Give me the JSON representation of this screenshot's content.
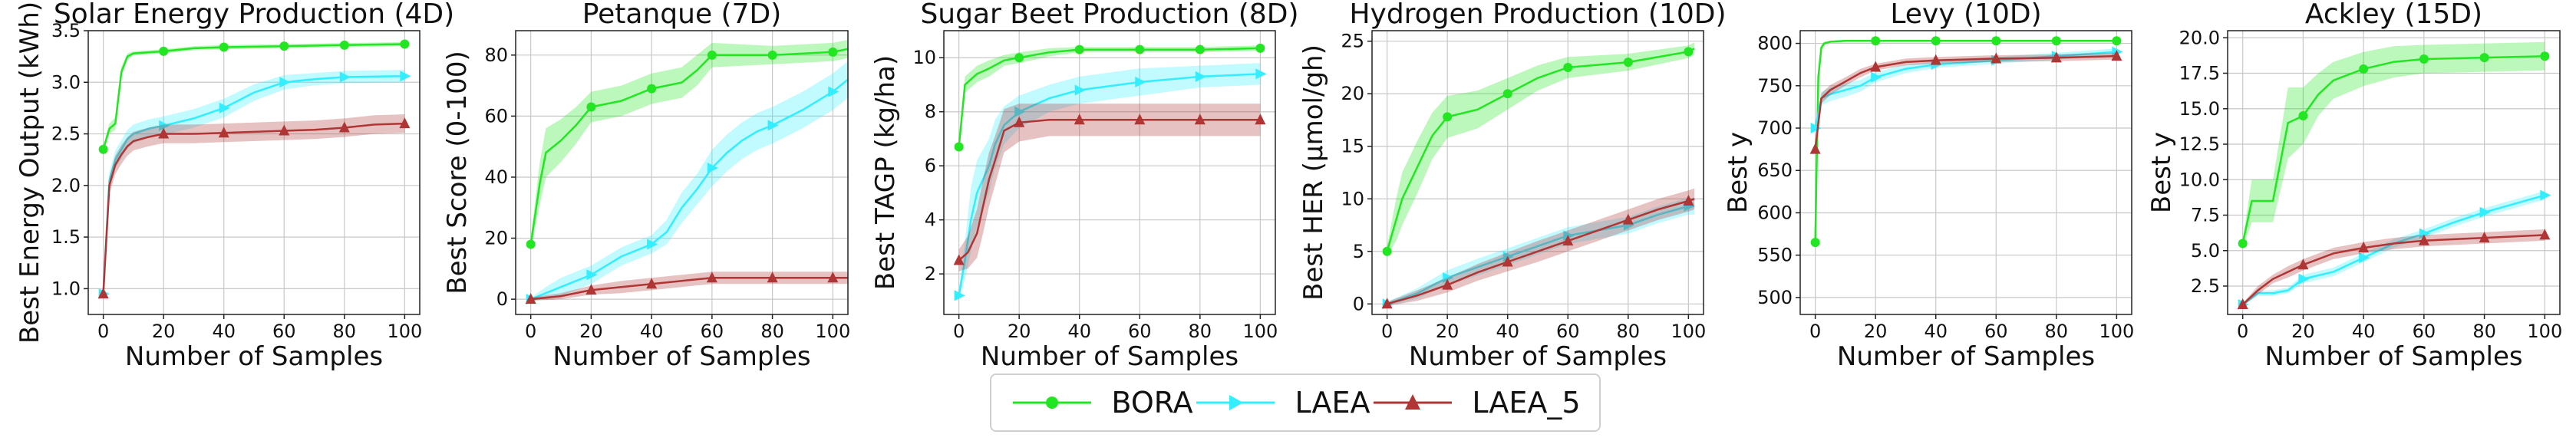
{
  "colors": {
    "BORA": "#22e622",
    "LAEA": "#33eeff",
    "LAEA_5": "#b03535",
    "grid": "#c8c8c8"
  },
  "legend": {
    "entries": [
      {
        "name": "BORA",
        "marker": "circle"
      },
      {
        "name": "LAEA",
        "marker": "triangle-right"
      },
      {
        "name": "LAEA_5",
        "marker": "triangle-up",
        "label": "LAEA_5"
      }
    ]
  },
  "chart_data": [
    {
      "type": "line",
      "title": "Solar Energy Production (4D)",
      "xlabel": "Number of Samples",
      "ylabel": "Best Energy Output (kWh)",
      "xlim": [
        -5,
        105
      ],
      "ylim": [
        0.75,
        3.5
      ],
      "xticks": [
        0,
        20,
        40,
        60,
        80,
        100
      ],
      "yticks": [
        1.0,
        1.5,
        2.0,
        2.5,
        3.0,
        3.5
      ],
      "ytick_labels": [
        "1.0",
        "1.5",
        "2.0",
        "2.5",
        "3.0",
        "3.5"
      ],
      "series": [
        {
          "name": "BORA",
          "x": [
            0,
            2,
            4,
            6,
            8,
            10,
            15,
            20,
            30,
            40,
            60,
            80,
            100
          ],
          "y": [
            2.35,
            2.55,
            2.6,
            3.1,
            3.25,
            3.28,
            3.29,
            3.3,
            3.33,
            3.34,
            3.35,
            3.36,
            3.37
          ],
          "band": [
            0.03,
            0.05,
            0.06,
            0.05,
            0.03,
            0.02,
            0.02,
            0.02,
            0.02,
            0.02,
            0.02,
            0.02,
            0.02
          ]
        },
        {
          "name": "LAEA",
          "x": [
            0,
            2,
            4,
            6,
            8,
            10,
            15,
            20,
            30,
            40,
            50,
            60,
            70,
            80,
            100
          ],
          "y": [
            0.95,
            2.05,
            2.25,
            2.35,
            2.45,
            2.5,
            2.55,
            2.58,
            2.65,
            2.75,
            2.9,
            3.0,
            3.03,
            3.05,
            3.06
          ],
          "band": [
            0.02,
            0.08,
            0.09,
            0.09,
            0.09,
            0.09,
            0.09,
            0.09,
            0.09,
            0.09,
            0.08,
            0.07,
            0.06,
            0.06,
            0.06
          ]
        },
        {
          "name": "LAEA_5",
          "x": [
            0,
            2,
            4,
            6,
            8,
            10,
            15,
            20,
            30,
            40,
            50,
            60,
            70,
            80,
            90,
            100
          ],
          "y": [
            0.95,
            2.0,
            2.2,
            2.3,
            2.38,
            2.43,
            2.47,
            2.5,
            2.5,
            2.51,
            2.52,
            2.53,
            2.54,
            2.56,
            2.59,
            2.6
          ],
          "band": [
            0.02,
            0.08,
            0.09,
            0.09,
            0.09,
            0.09,
            0.09,
            0.09,
            0.09,
            0.09,
            0.09,
            0.09,
            0.09,
            0.09,
            0.09,
            0.09
          ]
        }
      ]
    },
    {
      "type": "line",
      "title": "Petanque (7D)",
      "xlabel": "Number of Samples",
      "ylabel": "Best Score (0-100)",
      "xlim": [
        -5,
        105
      ],
      "ylim": [
        -5,
        88
      ],
      "xticks": [
        0,
        20,
        40,
        60,
        80,
        100
      ],
      "yticks": [
        0,
        20,
        40,
        60,
        80
      ],
      "ytick_labels": [
        "0",
        "20",
        "40",
        "60",
        "80"
      ],
      "series": [
        {
          "name": "BORA",
          "x": [
            0,
            3,
            5,
            10,
            15,
            20,
            30,
            40,
            50,
            55,
            60,
            80,
            100,
            105
          ],
          "y": [
            18,
            38,
            48,
            52,
            57,
            63,
            65,
            69,
            71,
            75,
            80,
            80,
            81,
            82
          ],
          "band": [
            2,
            7,
            8,
            7,
            6,
            5,
            5,
            5,
            5,
            5,
            4,
            3,
            3,
            3
          ]
        },
        {
          "name": "LAEA",
          "x": [
            0,
            5,
            10,
            20,
            30,
            40,
            45,
            50,
            55,
            60,
            65,
            70,
            75,
            80,
            90,
            100,
            105
          ],
          "y": [
            0,
            2,
            4,
            8,
            14,
            18,
            22,
            30,
            36,
            43,
            48,
            52,
            55,
            57,
            62,
            68,
            72
          ],
          "band": [
            0.5,
            2,
            3,
            3,
            3,
            3,
            4,
            5,
            5,
            6,
            6,
            6,
            6,
            6,
            6,
            6,
            6
          ]
        },
        {
          "name": "LAEA_5",
          "x": [
            0,
            5,
            10,
            20,
            30,
            40,
            50,
            60,
            80,
            100,
            105
          ],
          "y": [
            0,
            0.5,
            1,
            3,
            4,
            5,
            6,
            7,
            7,
            7,
            7
          ],
          "band": [
            0.5,
            0.8,
            1,
            1.5,
            2,
            2,
            2,
            2,
            2,
            2,
            2
          ]
        }
      ]
    },
    {
      "type": "line",
      "title": "Sugar Beet Production (8D)",
      "xlabel": "Number of Samples",
      "ylabel": "Best TAGP (kg/ha)",
      "xlim": [
        -5,
        105
      ],
      "ylim": [
        0.5,
        11
      ],
      "xticks": [
        0,
        20,
        40,
        60,
        80,
        100
      ],
      "yticks": [
        2,
        4,
        6,
        8,
        10
      ],
      "ytick_labels": [
        "2",
        "4",
        "6",
        "8",
        "10"
      ],
      "series": [
        {
          "name": "BORA",
          "x": [
            0,
            2,
            4,
            6,
            8,
            10,
            15,
            20,
            30,
            40,
            60,
            80,
            100
          ],
          "y": [
            6.7,
            9.0,
            9.2,
            9.4,
            9.5,
            9.6,
            9.9,
            10.0,
            10.2,
            10.3,
            10.3,
            10.3,
            10.35
          ],
          "band": [
            0.1,
            0.3,
            0.3,
            0.3,
            0.3,
            0.3,
            0.2,
            0.2,
            0.15,
            0.1,
            0.1,
            0.1,
            0.1
          ]
        },
        {
          "name": "LAEA",
          "x": [
            0,
            2,
            4,
            6,
            8,
            10,
            12,
            15,
            20,
            30,
            40,
            60,
            80,
            100
          ],
          "y": [
            1.2,
            2.5,
            4.0,
            5.0,
            5.5,
            6.0,
            6.8,
            7.5,
            8.0,
            8.5,
            8.8,
            9.1,
            9.3,
            9.4
          ],
          "band": [
            0.2,
            0.7,
            1.2,
            1.2,
            1.1,
            1.0,
            0.9,
            0.7,
            0.6,
            0.5,
            0.5,
            0.5,
            0.4,
            0.4
          ]
        },
        {
          "name": "LAEA_5",
          "x": [
            0,
            3,
            6,
            8,
            10,
            12,
            15,
            20,
            30,
            40,
            60,
            80,
            100
          ],
          "y": [
            2.5,
            2.8,
            3.5,
            4.5,
            5.5,
            6.2,
            7.3,
            7.6,
            7.7,
            7.7,
            7.7,
            7.7,
            7.7
          ],
          "band": [
            0.4,
            0.6,
            0.9,
            1.0,
            1.0,
            0.9,
            0.8,
            0.7,
            0.6,
            0.6,
            0.6,
            0.6,
            0.6
          ]
        }
      ]
    },
    {
      "type": "line",
      "title": "Hydrogen Production (10D)",
      "xlabel": "Number of Samples",
      "ylabel": "Best HER (μmol/gh)",
      "xlim": [
        -5,
        105
      ],
      "ylim": [
        -1,
        26
      ],
      "xticks": [
        0,
        20,
        40,
        60,
        80,
        100
      ],
      "yticks": [
        0,
        5,
        10,
        15,
        20,
        25
      ],
      "ytick_labels": [
        "0",
        "5",
        "10",
        "15",
        "20",
        "25"
      ],
      "series": [
        {
          "name": "BORA",
          "x": [
            0,
            3,
            5,
            10,
            15,
            20,
            30,
            40,
            50,
            60,
            80,
            100,
            102
          ],
          "y": [
            5,
            8,
            10,
            13,
            16,
            17.8,
            18.5,
            20,
            21.5,
            22.5,
            23,
            24,
            24.3
          ],
          "band": [
            0.5,
            2,
            2.5,
            2.5,
            2.2,
            2.0,
            1.8,
            1.5,
            1.2,
            1.0,
            0.8,
            0.6,
            0.6
          ]
        },
        {
          "name": "LAEA",
          "x": [
            0,
            10,
            20,
            30,
            40,
            50,
            60,
            70,
            80,
            90,
            100,
            102
          ],
          "y": [
            0,
            1,
            2.5,
            3.5,
            4.5,
            5.5,
            6.5,
            7,
            7.5,
            8.5,
            9.3,
            9.3
          ],
          "band": [
            0.2,
            0.5,
            0.7,
            0.8,
            0.8,
            0.8,
            0.8,
            0.8,
            0.8,
            0.8,
            0.8,
            0.8
          ]
        },
        {
          "name": "LAEA_5",
          "x": [
            0,
            10,
            20,
            30,
            40,
            50,
            60,
            70,
            80,
            90,
            100,
            102
          ],
          "y": [
            0,
            0.8,
            1.8,
            3,
            4,
            5,
            6,
            7,
            8,
            9,
            9.8,
            10
          ],
          "band": [
            0.2,
            0.5,
            0.7,
            0.8,
            0.9,
            1.0,
            1.0,
            1.0,
            1.0,
            1.0,
            1.0,
            1.0
          ]
        }
      ]
    },
    {
      "type": "line",
      "title": "Levy (10D)",
      "xlabel": "Number of Samples",
      "ylabel": "Best y",
      "xlim": [
        -5,
        105
      ],
      "ylim": [
        480,
        815
      ],
      "xticks": [
        0,
        20,
        40,
        60,
        80,
        100
      ],
      "yticks": [
        500,
        550,
        600,
        650,
        700,
        750,
        800
      ],
      "ytick_labels": [
        "500",
        "550",
        "600",
        "650",
        "700",
        "750",
        "800"
      ],
      "series": [
        {
          "name": "BORA",
          "x": [
            0,
            1,
            2,
            3,
            5,
            10,
            20,
            40,
            60,
            80,
            100
          ],
          "y": [
            565,
            760,
            795,
            800,
            802,
            803,
            803,
            803,
            803,
            803,
            803
          ],
          "band": [
            3,
            5,
            3,
            2,
            1,
            1,
            1,
            1,
            1,
            1,
            1
          ]
        },
        {
          "name": "LAEA",
          "x": [
            0,
            2,
            5,
            10,
            15,
            20,
            30,
            40,
            60,
            80,
            100
          ],
          "y": [
            700,
            735,
            740,
            745,
            750,
            760,
            770,
            775,
            780,
            785,
            790
          ],
          "band": [
            3,
            8,
            8,
            8,
            7,
            6,
            5,
            4,
            4,
            4,
            4
          ]
        },
        {
          "name": "LAEA_5",
          "x": [
            0,
            2,
            5,
            10,
            15,
            20,
            30,
            40,
            60,
            80,
            100
          ],
          "y": [
            675,
            735,
            745,
            755,
            765,
            772,
            778,
            780,
            782,
            783,
            785
          ],
          "band": [
            3,
            6,
            6,
            5,
            5,
            4,
            4,
            4,
            4,
            4,
            4
          ]
        }
      ]
    },
    {
      "type": "line",
      "title": "Ackley (15D)",
      "xlabel": "Number of Samples",
      "ylabel": "Best y",
      "xlim": [
        -5,
        105
      ],
      "ylim": [
        0.5,
        20.5
      ],
      "xticks": [
        0,
        20,
        40,
        60,
        80,
        100
      ],
      "yticks": [
        2.5,
        5.0,
        7.5,
        10.0,
        12.5,
        15.0,
        17.5,
        20.0
      ],
      "ytick_labels": [
        "2.5",
        "5.0",
        "7.5",
        "10.0",
        "12.5",
        "15.0",
        "17.5",
        "20.0"
      ],
      "series": [
        {
          "name": "BORA",
          "x": [
            0,
            3,
            5,
            10,
            15,
            20,
            25,
            30,
            40,
            50,
            60,
            80,
            100
          ],
          "y": [
            5.5,
            8.5,
            8.5,
            8.5,
            14,
            14.5,
            16,
            17,
            17.8,
            18.3,
            18.5,
            18.6,
            18.7
          ],
          "band": [
            0.3,
            1.5,
            1.5,
            1.5,
            2.5,
            2.0,
            1.5,
            1.3,
            1.2,
            1.1,
            1.0,
            1.0,
            1.0
          ]
        },
        {
          "name": "LAEA",
          "x": [
            0,
            5,
            10,
            15,
            20,
            30,
            40,
            50,
            60,
            70,
            80,
            90,
            100
          ],
          "y": [
            1.2,
            2.0,
            2.0,
            2.2,
            3.0,
            3.5,
            4.5,
            5.5,
            6.2,
            7.0,
            7.7,
            8.3,
            8.9
          ],
          "band": [
            0.1,
            0.2,
            0.2,
            0.2,
            0.3,
            0.3,
            0.3,
            0.3,
            0.3,
            0.3,
            0.3,
            0.3,
            0.3
          ]
        },
        {
          "name": "LAEA_5",
          "x": [
            0,
            5,
            10,
            15,
            20,
            30,
            40,
            50,
            60,
            70,
            80,
            90,
            100
          ],
          "y": [
            1.2,
            2.2,
            3.0,
            3.5,
            4.0,
            4.8,
            5.2,
            5.5,
            5.7,
            5.8,
            5.9,
            6.0,
            6.1
          ],
          "band": [
            0.1,
            0.3,
            0.3,
            0.4,
            0.4,
            0.4,
            0.4,
            0.4,
            0.4,
            0.4,
            0.4,
            0.4,
            0.4
          ]
        }
      ]
    }
  ]
}
